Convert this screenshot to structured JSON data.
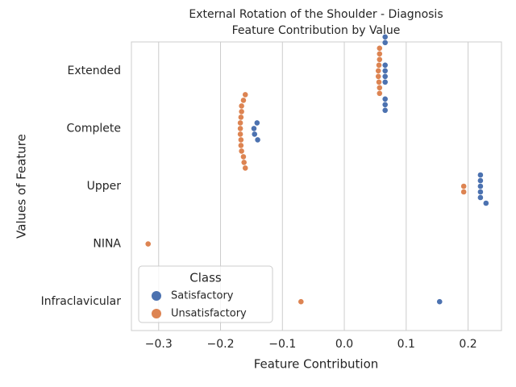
{
  "chart_data": {
    "type": "swarm",
    "title": "External Rotation of the Shoulder - Diagnosis",
    "subtitle": "Feature Contribution by Value",
    "x_label": "Feature Contribution",
    "y_label": "Values of Feature",
    "categories": [
      "Extended",
      "Complete",
      "Upper",
      "NINA",
      "Infraclavicular"
    ],
    "series": [
      {
        "name": "Satisfactory",
        "color": "#4c72b0",
        "values": [
          [
            0.066,
            0.066,
            0.066,
            0.066,
            0.066,
            0.066,
            0.066,
            0.066,
            0.066
          ],
          [
            -0.14,
            -0.145,
            -0.146,
            -0.141
          ],
          [
            0.22,
            0.22,
            0.22,
            0.229,
            0.22,
            0.22
          ],
          [],
          [
            0.154
          ]
        ]
      },
      {
        "name": "Unsatisfactory",
        "color": "#dd8452",
        "values": [
          [
            0.057,
            0.057,
            0.057,
            0.055,
            0.055,
            0.056,
            0.056,
            0.057,
            0.057
          ],
          [
            -0.166,
            -0.163,
            -0.167,
            -0.168,
            -0.16,
            -0.168,
            -0.16,
            -0.167,
            -0.168,
            -0.167,
            -0.166,
            -0.166,
            -0.163,
            -0.162
          ],
          [
            0.193,
            0.193
          ],
          [
            -0.317
          ],
          [
            -0.07
          ]
        ]
      }
    ],
    "legend_title": "Class",
    "legend": "lower left",
    "grid": "x",
    "xlim": [
      -0.344,
      0.254
    ],
    "xticks": [
      {
        "value": -0.3,
        "label": "−0.3"
      },
      {
        "value": -0.2,
        "label": "−0.2"
      },
      {
        "value": -0.1,
        "label": "−0.1"
      },
      {
        "value": 0,
        "label": "0.0"
      },
      0.1,
      0.2
    ]
  }
}
